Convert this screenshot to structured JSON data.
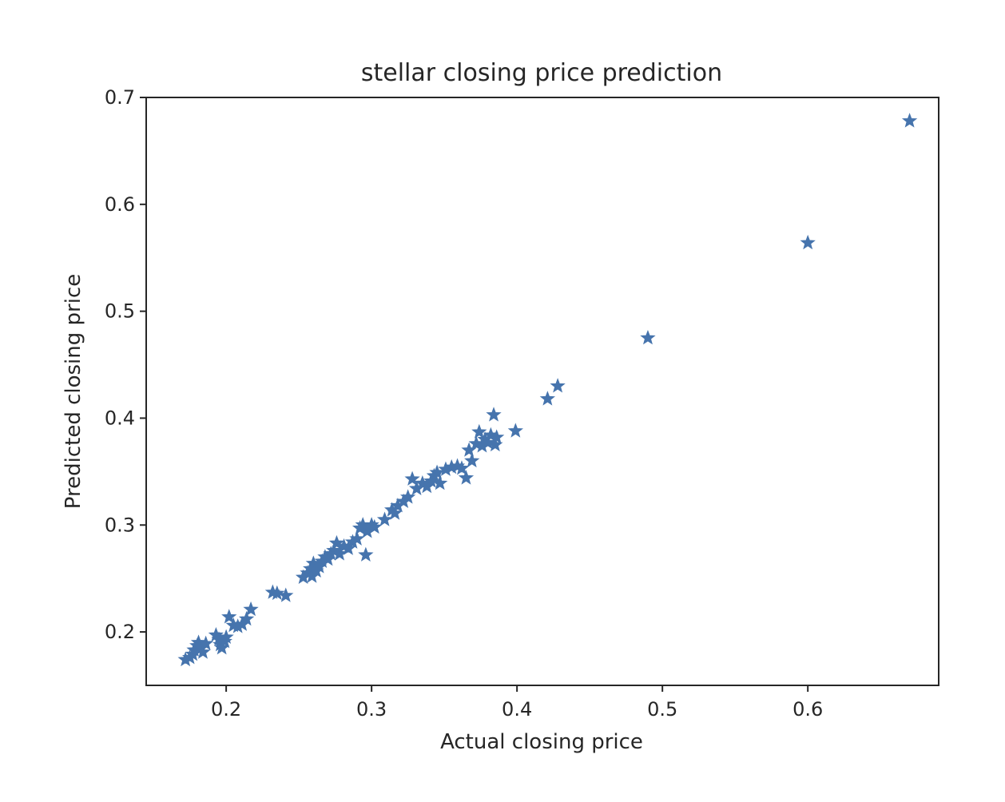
{
  "chart_data": {
    "type": "scatter",
    "title": "stellar closing price prediction",
    "xlabel": "Actual closing price",
    "ylabel": "Predicted closing price",
    "xlim": [
      0.145,
      0.69
    ],
    "ylim": [
      0.15,
      0.7
    ],
    "xticks": [
      "0.2",
      "0.3",
      "0.4",
      "0.5",
      "0.6"
    ],
    "yticks": [
      "0.2",
      "0.3",
      "0.4",
      "0.5",
      "0.6",
      "0.7"
    ],
    "marker": "star",
    "color": "#4674ad",
    "grid": false,
    "points": [
      {
        "x": 0.172,
        "y": 0.174
      },
      {
        "x": 0.175,
        "y": 0.176
      },
      {
        "x": 0.177,
        "y": 0.179
      },
      {
        "x": 0.178,
        "y": 0.183
      },
      {
        "x": 0.18,
        "y": 0.187
      },
      {
        "x": 0.181,
        "y": 0.19
      },
      {
        "x": 0.183,
        "y": 0.185
      },
      {
        "x": 0.184,
        "y": 0.181
      },
      {
        "x": 0.186,
        "y": 0.189
      },
      {
        "x": 0.193,
        "y": 0.197
      },
      {
        "x": 0.195,
        "y": 0.193
      },
      {
        "x": 0.196,
        "y": 0.188
      },
      {
        "x": 0.197,
        "y": 0.185
      },
      {
        "x": 0.199,
        "y": 0.191
      },
      {
        "x": 0.2,
        "y": 0.195
      },
      {
        "x": 0.202,
        "y": 0.214
      },
      {
        "x": 0.205,
        "y": 0.206
      },
      {
        "x": 0.208,
        "y": 0.205
      },
      {
        "x": 0.211,
        "y": 0.207
      },
      {
        "x": 0.214,
        "y": 0.212
      },
      {
        "x": 0.217,
        "y": 0.221
      },
      {
        "x": 0.232,
        "y": 0.237
      },
      {
        "x": 0.235,
        "y": 0.236
      },
      {
        "x": 0.241,
        "y": 0.234
      },
      {
        "x": 0.253,
        "y": 0.251
      },
      {
        "x": 0.256,
        "y": 0.255
      },
      {
        "x": 0.258,
        "y": 0.259
      },
      {
        "x": 0.259,
        "y": 0.252
      },
      {
        "x": 0.26,
        "y": 0.264
      },
      {
        "x": 0.262,
        "y": 0.257
      },
      {
        "x": 0.264,
        "y": 0.261
      },
      {
        "x": 0.266,
        "y": 0.266
      },
      {
        "x": 0.268,
        "y": 0.27
      },
      {
        "x": 0.27,
        "y": 0.268
      },
      {
        "x": 0.272,
        "y": 0.273
      },
      {
        "x": 0.274,
        "y": 0.276
      },
      {
        "x": 0.276,
        "y": 0.283
      },
      {
        "x": 0.278,
        "y": 0.273
      },
      {
        "x": 0.281,
        "y": 0.28
      },
      {
        "x": 0.284,
        "y": 0.278
      },
      {
        "x": 0.287,
        "y": 0.284
      },
      {
        "x": 0.29,
        "y": 0.287
      },
      {
        "x": 0.292,
        "y": 0.297
      },
      {
        "x": 0.294,
        "y": 0.3
      },
      {
        "x": 0.296,
        "y": 0.272
      },
      {
        "x": 0.297,
        "y": 0.294
      },
      {
        "x": 0.3,
        "y": 0.3
      },
      {
        "x": 0.302,
        "y": 0.298
      },
      {
        "x": 0.309,
        "y": 0.305
      },
      {
        "x": 0.314,
        "y": 0.314
      },
      {
        "x": 0.316,
        "y": 0.311
      },
      {
        "x": 0.318,
        "y": 0.318
      },
      {
        "x": 0.322,
        "y": 0.322
      },
      {
        "x": 0.325,
        "y": 0.326
      },
      {
        "x": 0.328,
        "y": 0.343
      },
      {
        "x": 0.331,
        "y": 0.334
      },
      {
        "x": 0.335,
        "y": 0.339
      },
      {
        "x": 0.338,
        "y": 0.336
      },
      {
        "x": 0.341,
        "y": 0.341
      },
      {
        "x": 0.343,
        "y": 0.346
      },
      {
        "x": 0.345,
        "y": 0.349
      },
      {
        "x": 0.347,
        "y": 0.339
      },
      {
        "x": 0.351,
        "y": 0.352
      },
      {
        "x": 0.355,
        "y": 0.354
      },
      {
        "x": 0.359,
        "y": 0.355
      },
      {
        "x": 0.362,
        "y": 0.353
      },
      {
        "x": 0.365,
        "y": 0.344
      },
      {
        "x": 0.367,
        "y": 0.37
      },
      {
        "x": 0.369,
        "y": 0.36
      },
      {
        "x": 0.372,
        "y": 0.376
      },
      {
        "x": 0.374,
        "y": 0.387
      },
      {
        "x": 0.376,
        "y": 0.374
      },
      {
        "x": 0.378,
        "y": 0.38
      },
      {
        "x": 0.38,
        "y": 0.377
      },
      {
        "x": 0.382,
        "y": 0.384
      },
      {
        "x": 0.384,
        "y": 0.403
      },
      {
        "x": 0.385,
        "y": 0.375
      },
      {
        "x": 0.386,
        "y": 0.382
      },
      {
        "x": 0.399,
        "y": 0.388
      },
      {
        "x": 0.421,
        "y": 0.418
      },
      {
        "x": 0.428,
        "y": 0.43
      },
      {
        "x": 0.49,
        "y": 0.475
      },
      {
        "x": 0.6,
        "y": 0.564
      },
      {
        "x": 0.67,
        "y": 0.678
      }
    ]
  }
}
